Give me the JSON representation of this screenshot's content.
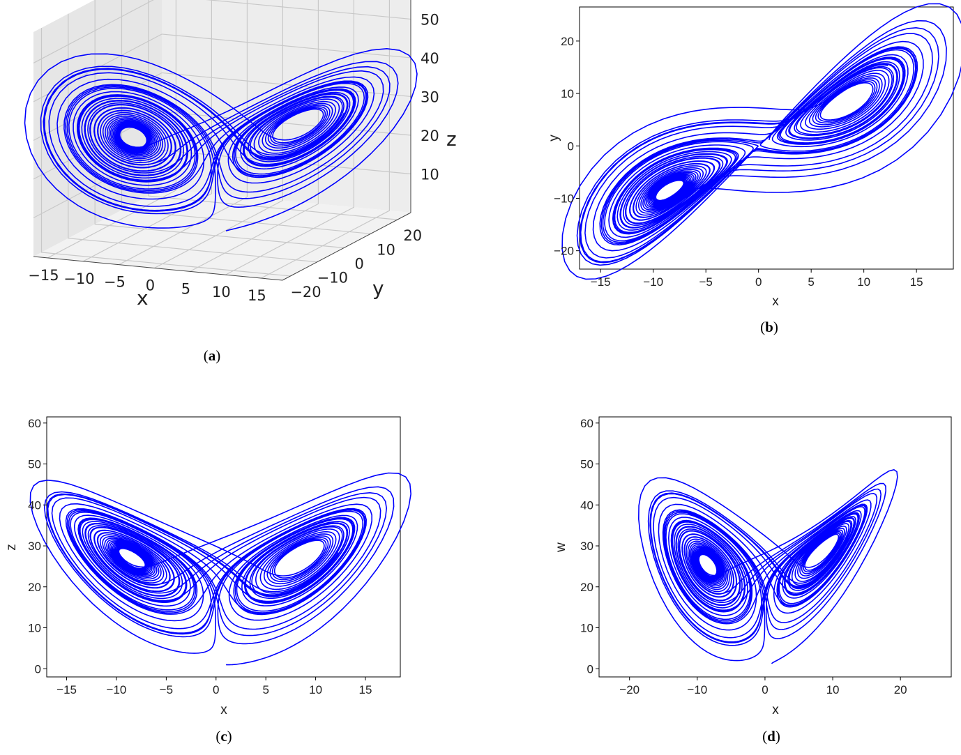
{
  "figure": {
    "panels": [
      {
        "id": "a",
        "caption_open": "(",
        "caption_letter": "a",
        "caption_close": ")"
      },
      {
        "id": "b",
        "caption_open": "(",
        "caption_letter": "b",
        "caption_close": ")"
      },
      {
        "id": "c",
        "caption_open": "(",
        "caption_letter": "c",
        "caption_close": ")"
      },
      {
        "id": "d",
        "caption_open": "(",
        "caption_letter": "d",
        "caption_close": ")"
      }
    ],
    "line_color": "#0000ff"
  },
  "chart_data": [
    {
      "panel": "a",
      "type": "line",
      "projection": "3d",
      "xlabel": "x",
      "ylabel": "y",
      "zlabel": "z",
      "xticks": [
        -15,
        -10,
        -5,
        0,
        5,
        10,
        15
      ],
      "yticks": [
        -20,
        -10,
        0,
        10,
        20
      ],
      "zticks": [
        10,
        20,
        30,
        40,
        50
      ],
      "xlim": [
        -17,
        18
      ],
      "ylim": [
        -23,
        25
      ],
      "zlim": [
        0,
        58
      ],
      "grid": true,
      "series": [
        {
          "color": "#0000ff",
          "values": "Lorenz-type chaotic attractor trajectory (x, y, z)"
        }
      ]
    },
    {
      "panel": "b",
      "type": "line",
      "xlabel": "x",
      "ylabel": "y",
      "xticks": [
        -15,
        -10,
        -5,
        0,
        5,
        10,
        15
      ],
      "yticks": [
        -20,
        -10,
        0,
        10,
        20
      ],
      "xlim": [
        -17,
        18.5
      ],
      "ylim": [
        -23.5,
        26.5
      ],
      "grid": false,
      "series": [
        {
          "color": "#0000ff",
          "values": "projection of attractor onto x-y plane"
        }
      ]
    },
    {
      "panel": "c",
      "type": "line",
      "xlabel": "x",
      "ylabel": "z",
      "xticks": [
        -15,
        -10,
        -5,
        0,
        5,
        10,
        15
      ],
      "yticks": [
        0,
        10,
        20,
        30,
        40,
        50,
        60
      ],
      "xlim": [
        -17,
        18.5
      ],
      "ylim": [
        -2,
        61.5
      ],
      "grid": false,
      "series": [
        {
          "color": "#0000ff",
          "values": "projection of attractor onto x-z plane"
        }
      ]
    },
    {
      "panel": "d",
      "type": "line",
      "xlabel": "x",
      "ylabel": "w",
      "xticks": [
        -20,
        -10,
        0,
        10,
        20
      ],
      "yticks": [
        0,
        10,
        20,
        30,
        40,
        50,
        60
      ],
      "xlim": [
        -24.5,
        27.5
      ],
      "ylim": [
        -2,
        61.5
      ],
      "grid": false,
      "series": [
        {
          "color": "#0000ff",
          "values": "projection of attractor onto x-w plane"
        }
      ]
    }
  ]
}
